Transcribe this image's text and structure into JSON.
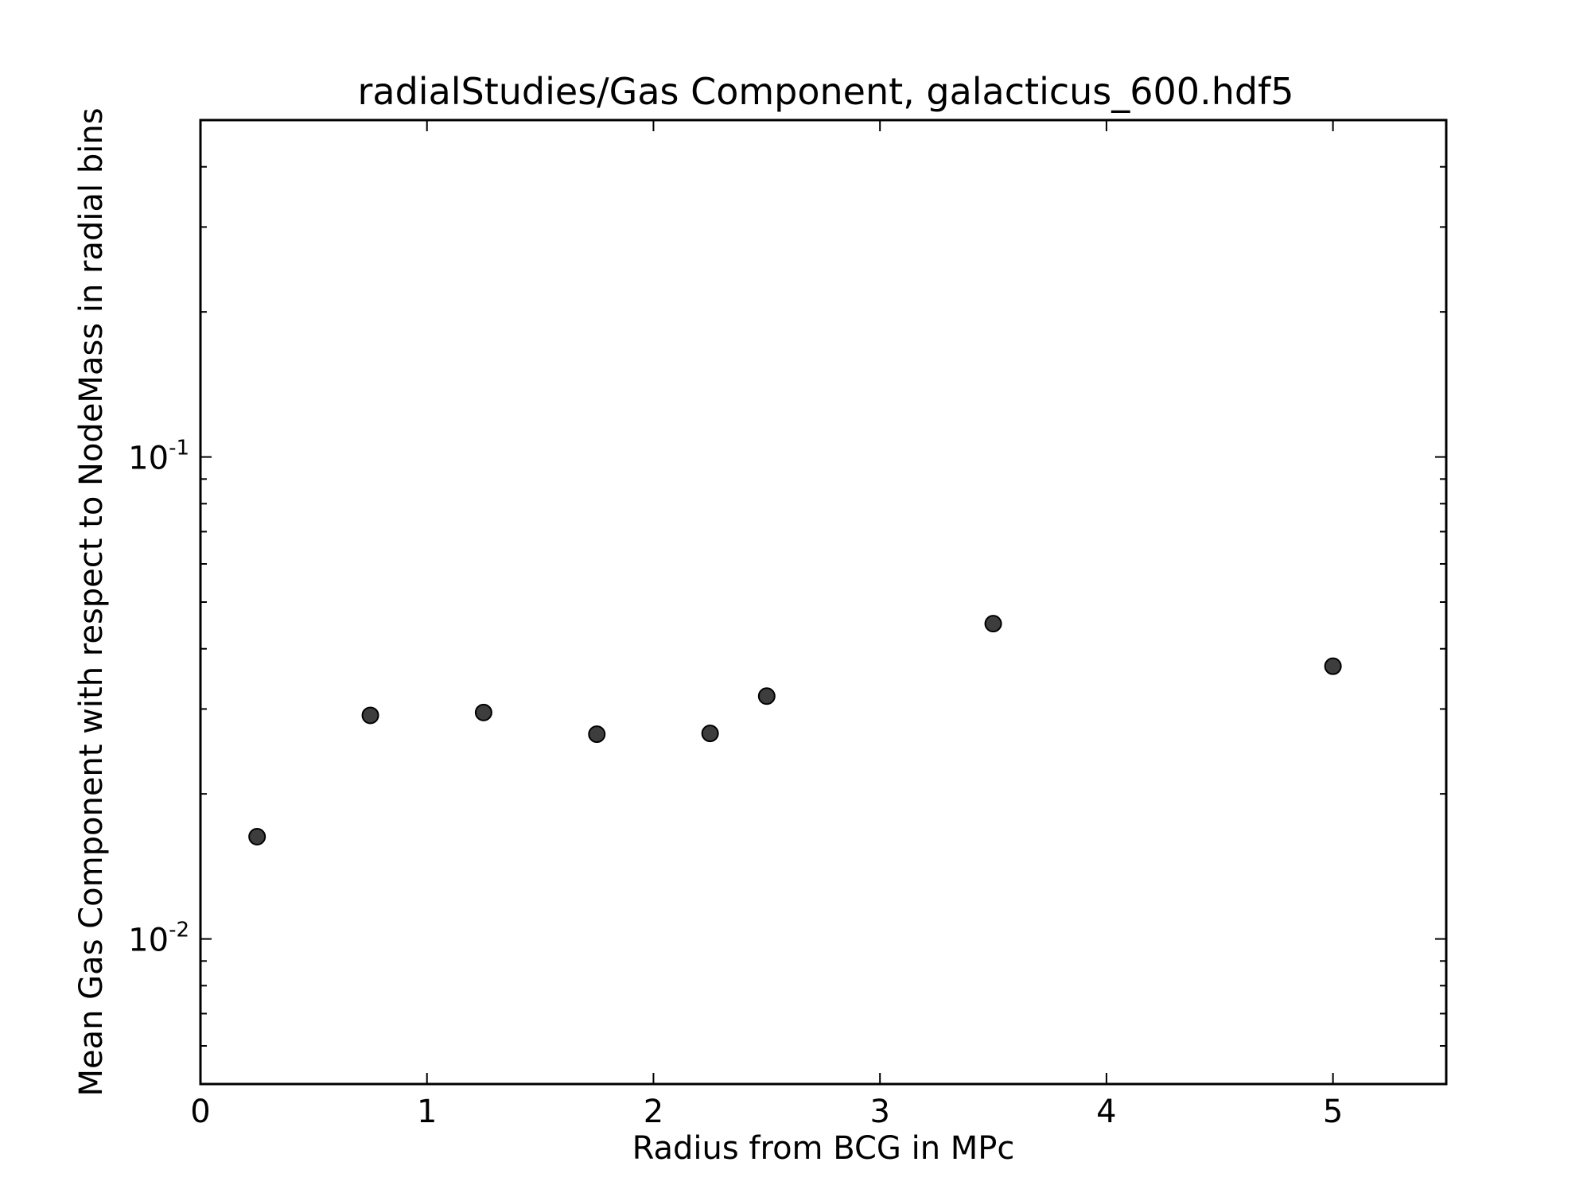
{
  "chart_data": {
    "type": "scatter",
    "title": "radialStudies/Gas Component, galacticus_600.hdf5",
    "xlabel": "Radius from BCG in MPc",
    "ylabel": "Mean Gas Component with respect to NodeMass in radial bins",
    "xlim": [
      0,
      5.5
    ],
    "ylim": [
      0.005,
      0.5
    ],
    "yscale": "log",
    "grid": false,
    "x_ticks": [
      0,
      1,
      2,
      3,
      4,
      5
    ],
    "x_tick_labels": [
      "0",
      "1",
      "2",
      "3",
      "4",
      "5"
    ],
    "y_ticks": [
      0.01,
      0.1
    ],
    "y_tick_labels": [
      {
        "base": "10",
        "exp": "-2"
      },
      {
        "base": "10",
        "exp": "-1"
      }
    ],
    "marker_color": "#3d3d3d",
    "series": [
      {
        "x": [
          0.25,
          0.75,
          1.25,
          1.75,
          2.25,
          2.5,
          3.5,
          5.0
        ],
        "y": [
          0.0163,
          0.0291,
          0.0295,
          0.0266,
          0.0267,
          0.0319,
          0.0451,
          0.0368
        ]
      }
    ]
  }
}
